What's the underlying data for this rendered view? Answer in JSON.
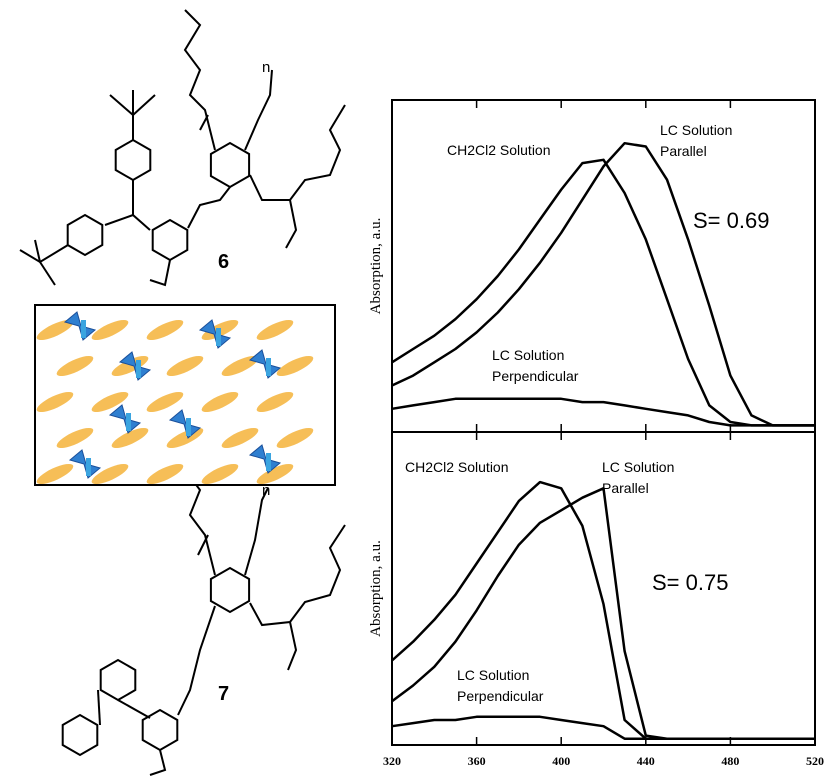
{
  "structures": {
    "compound_labels": [
      "6",
      "7"
    ],
    "repeat_labels": [
      "n",
      "n"
    ]
  },
  "chart_data": [
    {
      "type": "line",
      "y_label": "Absorption, a.u.",
      "x": [
        320,
        330,
        340,
        350,
        360,
        370,
        380,
        390,
        400,
        410,
        420,
        430,
        440,
        450,
        460,
        470,
        480,
        490,
        500,
        510,
        520
      ],
      "xlim": [
        320,
        520
      ],
      "ylim": [
        0,
        1
      ],
      "xticks": [
        320,
        360,
        400,
        440,
        480,
        520
      ],
      "xtick_labels": false,
      "series": [
        {
          "name": "CH2Cl2 Solution",
          "color": "#000000",
          "values": [
            0.21,
            0.25,
            0.29,
            0.34,
            0.4,
            0.47,
            0.55,
            0.64,
            0.73,
            0.81,
            0.82,
            0.72,
            0.58,
            0.4,
            0.22,
            0.08,
            0.03,
            0.02,
            0.02,
            0.02,
            0.02
          ]
        },
        {
          "name": "LC Solution Parallel",
          "color": "#000000",
          "values": [
            0.14,
            0.17,
            0.21,
            0.25,
            0.3,
            0.36,
            0.43,
            0.51,
            0.6,
            0.7,
            0.8,
            0.87,
            0.86,
            0.76,
            0.58,
            0.38,
            0.17,
            0.05,
            0.02,
            0.02,
            0.02
          ]
        },
        {
          "name": "LC Solution Perpendicular",
          "color": "#000000",
          "values": [
            0.07,
            0.08,
            0.09,
            0.1,
            0.1,
            0.1,
            0.1,
            0.1,
            0.1,
            0.09,
            0.09,
            0.08,
            0.07,
            0.06,
            0.05,
            0.03,
            0.02,
            0.02,
            0.02,
            0.02,
            0.02
          ]
        }
      ],
      "annotations": [
        {
          "lines": [
            "CH2Cl2 Solution"
          ]
        },
        {
          "lines": [
            "LC Solution",
            "Parallel"
          ]
        },
        {
          "lines": [
            "S= 0.69"
          ]
        },
        {
          "lines": [
            "LC Solution",
            "Perpendicular"
          ]
        }
      ]
    },
    {
      "type": "line",
      "y_label": "Absorption, a.u.",
      "x": [
        320,
        330,
        340,
        350,
        360,
        370,
        380,
        390,
        400,
        410,
        420,
        430,
        440,
        450,
        460,
        470,
        480,
        490,
        500,
        510,
        520
      ],
      "xlim": [
        320,
        520
      ],
      "ylim": [
        0,
        1
      ],
      "xticks": [
        320,
        360,
        400,
        440,
        480,
        520
      ],
      "xtick_labels": true,
      "series": [
        {
          "name": "CH2Cl2 Solution",
          "color": "#000000",
          "values": [
            0.27,
            0.33,
            0.4,
            0.48,
            0.58,
            0.68,
            0.78,
            0.84,
            0.82,
            0.7,
            0.45,
            0.08,
            0.02,
            0.02,
            0.02,
            0.02,
            0.02,
            0.02,
            0.02,
            0.02,
            0.02
          ]
        },
        {
          "name": "LC Solution Parallel",
          "color": "#000000",
          "values": [
            0.14,
            0.19,
            0.25,
            0.33,
            0.43,
            0.54,
            0.64,
            0.71,
            0.75,
            0.79,
            0.82,
            0.3,
            0.03,
            0.02,
            0.02,
            0.02,
            0.02,
            0.02,
            0.02,
            0.02,
            0.02
          ]
        },
        {
          "name": "LC Solution Perpendicular",
          "color": "#000000",
          "values": [
            0.06,
            0.07,
            0.08,
            0.08,
            0.09,
            0.09,
            0.09,
            0.09,
            0.08,
            0.07,
            0.06,
            0.02,
            0.02,
            0.02,
            0.02,
            0.02,
            0.02,
            0.02,
            0.02,
            0.02,
            0.02
          ]
        }
      ],
      "annotations": [
        {
          "lines": [
            "CH2Cl2 Solution"
          ]
        },
        {
          "lines": [
            "LC Solution",
            "Parallel"
          ]
        },
        {
          "lines": [
            "S= 0.75"
          ]
        },
        {
          "lines": [
            "LC Solution",
            "Perpendicular"
          ]
        }
      ]
    }
  ]
}
